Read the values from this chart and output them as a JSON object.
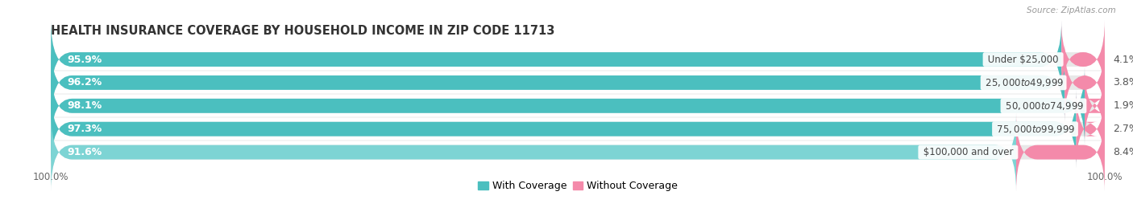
{
  "title": "HEALTH INSURANCE COVERAGE BY HOUSEHOLD INCOME IN ZIP CODE 11713",
  "source": "Source: ZipAtlas.com",
  "categories": [
    "Under $25,000",
    "$25,000 to $49,999",
    "$50,000 to $74,999",
    "$75,000 to $99,999",
    "$100,000 and over"
  ],
  "with_coverage": [
    95.9,
    96.2,
    98.1,
    97.3,
    91.6
  ],
  "without_coverage": [
    4.1,
    3.8,
    1.9,
    2.7,
    8.4
  ],
  "color_with": "#4bbfbf",
  "color_with_last": "#7dd4d4",
  "color_without": "#f48aaa",
  "bar_bg_color": "#e8e8e8",
  "label_color_with": "#ffffff",
  "label_color_cat": "#444444",
  "label_color_without": "#555555",
  "background_color": "#ffffff",
  "bar_height": 0.62,
  "title_fontsize": 10.5,
  "label_fontsize": 9,
  "cat_fontsize": 8.5,
  "tick_fontsize": 8.5,
  "legend_fontsize": 9,
  "xlim": [
    0,
    100
  ],
  "bar_xlim": [
    0,
    100
  ],
  "rounding": 2.0
}
